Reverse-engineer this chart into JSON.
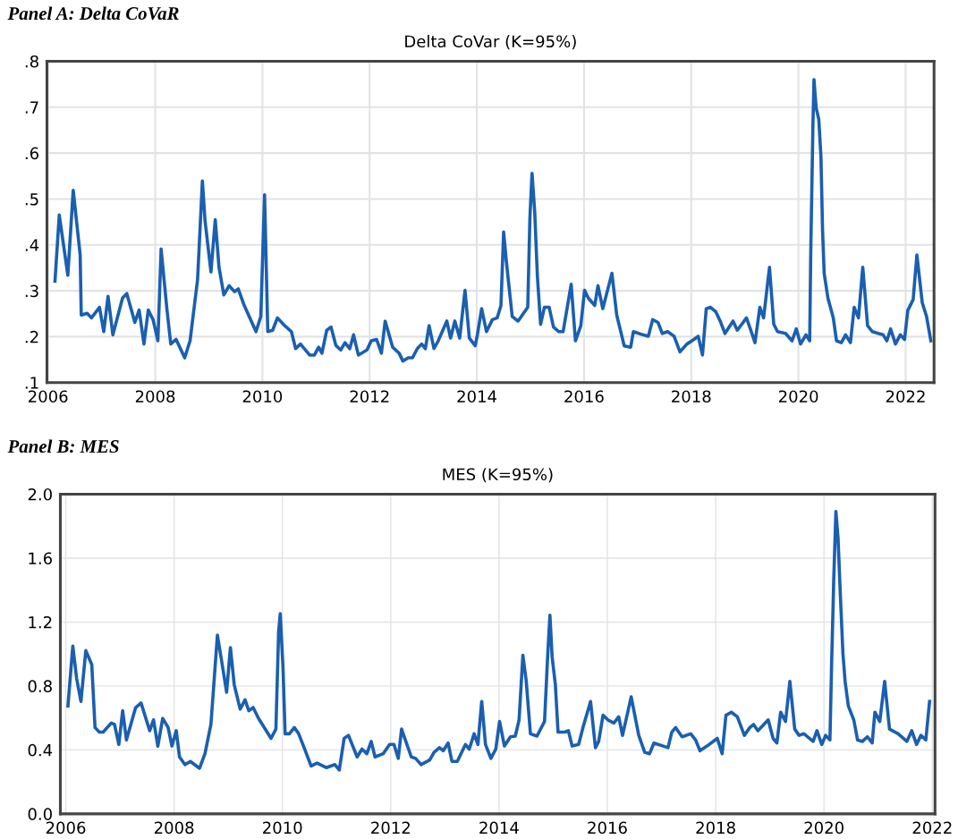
{
  "chart_data": [
    {
      "type": "line",
      "title": "Panel A: Delta CoVaR",
      "subtitle": "Delta CoVar (K=95%)",
      "x": [
        2006.13,
        2006.21,
        2006.37,
        2006.47,
        2006.6,
        2006.62,
        2006.73,
        2006.81,
        2006.96,
        2007.04,
        2007.12,
        2007.21,
        2007.39,
        2007.47,
        2007.62,
        2007.7,
        2007.79,
        2007.87,
        2007.96,
        2008.05,
        2008.11,
        2008.22,
        2008.29,
        2008.39,
        2008.55,
        2008.65,
        2008.79,
        2008.88,
        2008.93,
        2009.04,
        2009.12,
        2009.19,
        2009.28,
        2009.38,
        2009.48,
        2009.55,
        2009.65,
        2009.88,
        2009.97,
        2010.04,
        2010.1,
        2010.19,
        2010.28,
        2010.39,
        2010.54,
        2010.62,
        2010.71,
        2010.88,
        2010.97,
        2011.05,
        2011.11,
        2011.2,
        2011.28,
        2011.37,
        2011.46,
        2011.54,
        2011.63,
        2011.7,
        2011.79,
        2011.95,
        2012.03,
        2012.13,
        2012.22,
        2012.29,
        2012.43,
        2012.55,
        2012.62,
        2012.72,
        2012.8,
        2012.89,
        2012.97,
        2013.04,
        2013.11,
        2013.2,
        2013.28,
        2013.44,
        2013.51,
        2013.59,
        2013.68,
        2013.78,
        2013.86,
        2013.97,
        2014.01,
        2014.09,
        2014.18,
        2014.29,
        2014.38,
        2014.45,
        2014.5,
        2014.55,
        2014.66,
        2014.77,
        2014.95,
        2014.99,
        2015.03,
        2015.08,
        2015.13,
        2015.19,
        2015.26,
        2015.35,
        2015.43,
        2015.53,
        2015.61,
        2015.76,
        2015.84,
        2015.94,
        2016.01,
        2016.08,
        2016.2,
        2016.26,
        2016.35,
        2016.52,
        2016.61,
        2016.75,
        2016.87,
        2016.92,
        2017.1,
        2017.2,
        2017.28,
        2017.38,
        2017.46,
        2017.56,
        2017.68,
        2017.79,
        2017.92,
        2018.05,
        2018.13,
        2018.21,
        2018.28,
        2018.36,
        2018.46,
        2018.54,
        2018.63,
        2018.78,
        2018.86,
        2019.03,
        2019.12,
        2019.19,
        2019.28,
        2019.35,
        2019.46,
        2019.54,
        2019.61,
        2019.76,
        2019.88,
        2019.96,
        2020.04,
        2020.14,
        2020.21,
        2020.23,
        2020.27,
        2020.29,
        2020.33,
        2020.38,
        2020.42,
        2020.45,
        2020.48,
        2020.55,
        2020.65,
        2020.71,
        2020.8,
        2020.88,
        2020.97,
        2021.04,
        2021.12,
        2021.2,
        2021.29,
        2021.38,
        2021.49,
        2021.58,
        2021.65,
        2021.72,
        2021.81,
        2021.9,
        2021.98,
        2022.04,
        2022.14,
        2022.21,
        2022.31,
        2022.39,
        2022.47
      ],
      "series": [
        {
          "color": "#1a5fb0",
          "values": [
            0.321,
            0.465,
            0.334,
            0.519,
            0.378,
            0.247,
            0.251,
            0.241,
            0.264,
            0.211,
            0.288,
            0.204,
            0.284,
            0.294,
            0.231,
            0.258,
            0.184,
            0.258,
            0.237,
            0.191,
            0.391,
            0.258,
            0.184,
            0.194,
            0.154,
            0.191,
            0.324,
            0.539,
            0.452,
            0.341,
            0.455,
            0.351,
            0.291,
            0.311,
            0.298,
            0.304,
            0.271,
            0.211,
            0.244,
            0.509,
            0.211,
            0.214,
            0.241,
            0.227,
            0.211,
            0.174,
            0.184,
            0.16,
            0.16,
            0.177,
            0.164,
            0.214,
            0.221,
            0.181,
            0.171,
            0.187,
            0.174,
            0.204,
            0.16,
            0.171,
            0.191,
            0.194,
            0.164,
            0.234,
            0.177,
            0.164,
            0.147,
            0.154,
            0.154,
            0.174,
            0.184,
            0.174,
            0.224,
            0.174,
            0.191,
            0.234,
            0.197,
            0.234,
            0.197,
            0.301,
            0.197,
            0.18,
            0.204,
            0.261,
            0.211,
            0.237,
            0.241,
            0.268,
            0.428,
            0.365,
            0.244,
            0.234,
            0.264,
            0.458,
            0.556,
            0.472,
            0.331,
            0.227,
            0.264,
            0.264,
            0.221,
            0.211,
            0.211,
            0.314,
            0.191,
            0.224,
            0.301,
            0.284,
            0.268,
            0.311,
            0.261,
            0.338,
            0.247,
            0.18,
            0.177,
            0.211,
            0.204,
            0.201,
            0.237,
            0.231,
            0.207,
            0.211,
            0.201,
            0.167,
            0.184,
            0.194,
            0.201,
            0.16,
            0.261,
            0.264,
            0.254,
            0.234,
            0.207,
            0.234,
            0.214,
            0.241,
            0.211,
            0.187,
            0.264,
            0.241,
            0.351,
            0.227,
            0.211,
            0.207,
            0.191,
            0.217,
            0.184,
            0.204,
            0.191,
            0.385,
            0.659,
            0.76,
            0.699,
            0.673,
            0.592,
            0.432,
            0.338,
            0.284,
            0.241,
            0.191,
            0.187,
            0.204,
            0.187,
            0.264,
            0.241,
            0.351,
            0.224,
            0.211,
            0.207,
            0.204,
            0.191,
            0.217,
            0.184,
            0.204,
            0.194,
            0.257,
            0.281,
            0.378,
            0.274,
            0.244,
            0.191
          ]
        }
      ],
      "xlim": [
        2005.98,
        2022.53
      ],
      "xticks": [
        2006,
        2008,
        2010,
        2012,
        2014,
        2016,
        2018,
        2020,
        2022
      ],
      "ylim": [
        0.1,
        0.8
      ],
      "yticks": [
        {
          "value": 0.1,
          "label": ".1"
        },
        {
          "value": 0.2,
          "label": ".2"
        },
        {
          "value": 0.3,
          "label": ".3"
        },
        {
          "value": 0.4,
          "label": ".4"
        },
        {
          "value": 0.5,
          "label": ".5"
        },
        {
          "value": 0.6,
          "label": ".6"
        },
        {
          "value": 0.7,
          "label": ".7"
        },
        {
          "value": 0.8,
          "label": ".8"
        }
      ],
      "grid": true,
      "legend": false,
      "marker": "none",
      "line_style": "solid"
    },
    {
      "type": "line",
      "title": "Panel B: MES",
      "subtitle": "MES (K=95%)",
      "x": [
        2006.04,
        2006.13,
        2006.2,
        2006.28,
        2006.37,
        2006.48,
        2006.54,
        2006.62,
        2006.69,
        2006.84,
        2006.9,
        2006.98,
        2007.05,
        2007.12,
        2007.29,
        2007.39,
        2007.55,
        2007.62,
        2007.7,
        2007.79,
        2007.89,
        2007.96,
        2008.04,
        2008.1,
        2008.2,
        2008.3,
        2008.47,
        2008.57,
        2008.68,
        2008.8,
        2008.87,
        2008.97,
        2009.04,
        2009.11,
        2009.22,
        2009.31,
        2009.38,
        2009.46,
        2009.56,
        2009.79,
        2009.88,
        2009.93,
        2009.96,
        2010.01,
        2010.05,
        2010.13,
        2010.22,
        2010.3,
        2010.39,
        2010.53,
        2010.64,
        2010.81,
        2010.97,
        2011.05,
        2011.14,
        2011.22,
        2011.38,
        2011.47,
        2011.56,
        2011.64,
        2011.71,
        2011.86,
        2011.98,
        2012.06,
        2012.14,
        2012.2,
        2012.38,
        2012.46,
        2012.56,
        2012.72,
        2012.8,
        2012.9,
        2012.97,
        2013.06,
        2013.13,
        2013.23,
        2013.38,
        2013.45,
        2013.54,
        2013.61,
        2013.68,
        2013.75,
        2013.85,
        2013.94,
        2014.01,
        2014.1,
        2014.21,
        2014.3,
        2014.37,
        2014.44,
        2014.5,
        2014.58,
        2014.7,
        2014.84,
        2014.9,
        2014.94,
        2014.98,
        2015.04,
        2015.09,
        2015.21,
        2015.28,
        2015.35,
        2015.47,
        2015.55,
        2015.69,
        2015.78,
        2015.84,
        2015.92,
        2016.01,
        2016.12,
        2016.21,
        2016.28,
        2016.44,
        2016.58,
        2016.69,
        2016.78,
        2016.86,
        2017.12,
        2017.19,
        2017.26,
        2017.38,
        2017.54,
        2017.63,
        2017.71,
        2017.84,
        2018.03,
        2018.12,
        2018.19,
        2018.29,
        2018.4,
        2018.53,
        2018.63,
        2018.7,
        2018.78,
        2018.97,
        2019.06,
        2019.13,
        2019.2,
        2019.29,
        2019.37,
        2019.46,
        2019.54,
        2019.63,
        2019.8,
        2019.87,
        2019.96,
        2020.03,
        2020.11,
        2020.14,
        2020.18,
        2020.22,
        2020.26,
        2020.3,
        2020.35,
        2020.39,
        2020.45,
        2020.55,
        2020.62,
        2020.71,
        2020.8,
        2020.89,
        2020.94,
        2021.03,
        2021.12,
        2021.21,
        2021.37,
        2021.53,
        2021.62,
        2021.71,
        2021.79,
        2021.88,
        2021.95
      ],
      "series": [
        {
          "color": "#1a5fb0",
          "values": [
            0.674,
            1.05,
            0.848,
            0.703,
            1.021,
            0.934,
            0.54,
            0.511,
            0.511,
            0.568,
            0.559,
            0.434,
            0.645,
            0.462,
            0.665,
            0.694,
            0.52,
            0.588,
            0.424,
            0.597,
            0.54,
            0.424,
            0.52,
            0.356,
            0.308,
            0.328,
            0.285,
            0.376,
            0.559,
            1.118,
            0.973,
            0.761,
            1.04,
            0.809,
            0.655,
            0.713,
            0.645,
            0.665,
            0.597,
            0.472,
            0.53,
            1.137,
            1.252,
            0.925,
            0.501,
            0.501,
            0.54,
            0.501,
            0.424,
            0.299,
            0.318,
            0.289,
            0.308,
            0.274,
            0.472,
            0.491,
            0.356,
            0.405,
            0.376,
            0.453,
            0.356,
            0.376,
            0.434,
            0.434,
            0.347,
            0.53,
            0.356,
            0.347,
            0.308,
            0.337,
            0.385,
            0.414,
            0.395,
            0.443,
            0.328,
            0.328,
            0.434,
            0.405,
            0.501,
            0.434,
            0.703,
            0.434,
            0.347,
            0.405,
            0.578,
            0.424,
            0.482,
            0.486,
            0.588,
            0.992,
            0.838,
            0.501,
            0.486,
            0.578,
            1.002,
            1.243,
            0.983,
            0.809,
            0.511,
            0.511,
            0.52,
            0.424,
            0.434,
            0.54,
            0.703,
            0.414,
            0.453,
            0.617,
            0.588,
            0.568,
            0.607,
            0.491,
            0.732,
            0.491,
            0.385,
            0.376,
            0.443,
            0.414,
            0.511,
            0.54,
            0.482,
            0.501,
            0.462,
            0.395,
            0.424,
            0.472,
            0.376,
            0.617,
            0.636,
            0.607,
            0.491,
            0.54,
            0.559,
            0.52,
            0.588,
            0.472,
            0.443,
            0.636,
            0.578,
            0.829,
            0.53,
            0.491,
            0.501,
            0.453,
            0.52,
            0.434,
            0.491,
            0.462,
            0.925,
            1.464,
            1.892,
            1.724,
            1.387,
            1.002,
            0.829,
            0.674,
            0.588,
            0.462,
            0.453,
            0.482,
            0.443,
            0.636,
            0.578,
            0.829,
            0.53,
            0.501,
            0.453,
            0.52,
            0.434,
            0.491,
            0.462,
            0.703
          ]
        }
      ],
      "xlim": [
        2005.9,
        2022.05
      ],
      "xticks": [
        2006,
        2008,
        2010,
        2012,
        2014,
        2016,
        2018,
        2020,
        2022
      ],
      "ylim": [
        0.0,
        2.0
      ],
      "yticks": [
        {
          "value": 0.0,
          "label": "0.0"
        },
        {
          "value": 0.4,
          "label": "0.4"
        },
        {
          "value": 0.8,
          "label": "0.8"
        },
        {
          "value": 1.2,
          "label": "1.2"
        },
        {
          "value": 1.6,
          "label": "1.6"
        },
        {
          "value": 2.0,
          "label": "2.0"
        }
      ],
      "grid": true,
      "legend": false,
      "marker": "none",
      "line_style": "solid"
    }
  ]
}
